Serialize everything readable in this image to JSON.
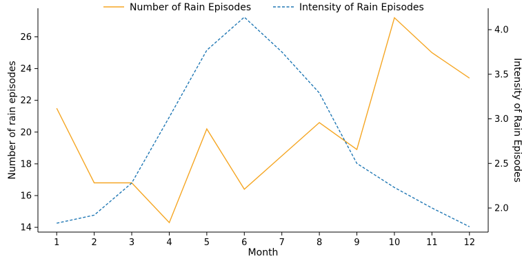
{
  "chart_data": {
    "type": "line",
    "x": [
      1,
      2,
      3,
      4,
      5,
      6,
      7,
      8,
      9,
      10,
      11,
      12
    ],
    "xlabel": "Month",
    "xlim": [
      0.5,
      12.5
    ],
    "xticks": [
      1,
      2,
      3,
      4,
      5,
      6,
      7,
      8,
      9,
      10,
      11,
      12
    ],
    "left_axis": {
      "label": "Number of rain episodes",
      "ylim": [
        13.7,
        27.8
      ],
      "ticks": [
        14,
        16,
        18,
        20,
        22,
        24,
        26
      ]
    },
    "right_axis": {
      "label": "Intensity of Rain Episodes",
      "ylim": [
        1.73,
        4.24
      ],
      "ticks": [
        2.0,
        2.5,
        3.0,
        3.5,
        4.0
      ]
    },
    "series": [
      {
        "name": "Number of Rain Episodes",
        "axis": "left",
        "style": "solid",
        "color": "#f5a623",
        "values": [
          21.5,
          16.8,
          16.8,
          14.3,
          20.2,
          16.4,
          18.5,
          20.6,
          18.9,
          27.2,
          25.0,
          23.4
        ]
      },
      {
        "name": "Intensity of Rain Episodes",
        "axis": "right",
        "style": "dashed",
        "color": "#1f77b4",
        "values": [
          1.83,
          1.92,
          2.28,
          3.02,
          3.77,
          4.14,
          3.75,
          3.29,
          2.5,
          2.23,
          2.0,
          1.79
        ]
      }
    ],
    "legend_placement": "top-center",
    "grid": false
  }
}
